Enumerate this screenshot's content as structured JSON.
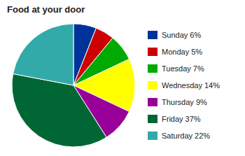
{
  "chart_data": {
    "type": "pie",
    "title": "Food at your door",
    "categories": [
      "Sunday 6%",
      "Monday 5%",
      "Tuesday 7%",
      "Wednesday 14%",
      "Thursday 9%",
      "Friday 37%",
      "Saturday 22%"
    ],
    "values": [
      6,
      5,
      7,
      14,
      9,
      37,
      22
    ],
    "colors": [
      "#003399",
      "#CC0000",
      "#00AA00",
      "#FFFF00",
      "#990099",
      "#006633",
      "#33AAAA"
    ],
    "legend": "right"
  }
}
